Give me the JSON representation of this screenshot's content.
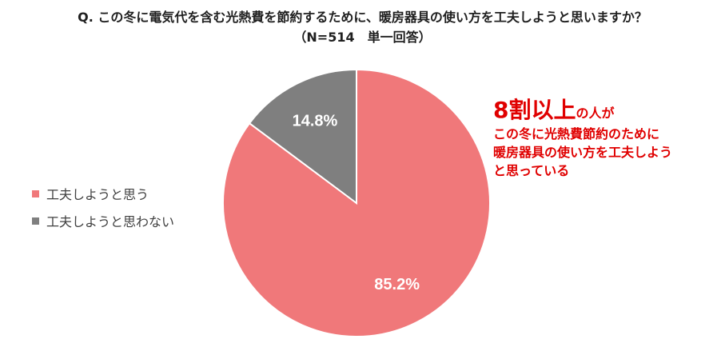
{
  "title": {
    "line1": "Q. この冬に電気代を含む光熱費を節約するために、暖房器具の使い方を工夫しようと思いますか？",
    "line2": "（N=514　単一回答）"
  },
  "legend": [
    {
      "label": "工夫しようと思う",
      "color": "#f0787a"
    },
    {
      "label": "工夫しようと思わない",
      "color": "#7f7f7f"
    }
  ],
  "callout": {
    "highlight": "8割以上",
    "suffix": "の人が",
    "lines": [
      "この冬に光熱費節約のために",
      "暖房器具の使い方を工夫しよう",
      "と思っている"
    ],
    "color": "#e00000"
  },
  "chart_data": {
    "type": "pie",
    "start": "12 o'clock",
    "direction": "clockwise",
    "slices": [
      {
        "label": "工夫しようと思う",
        "value": 85.2,
        "display": "85.2%",
        "color": "#f0787a"
      },
      {
        "label": "工夫しようと思わない",
        "value": 14.8,
        "display": "14.8%",
        "color": "#7f7f7f"
      }
    ],
    "legend_position": "left"
  }
}
